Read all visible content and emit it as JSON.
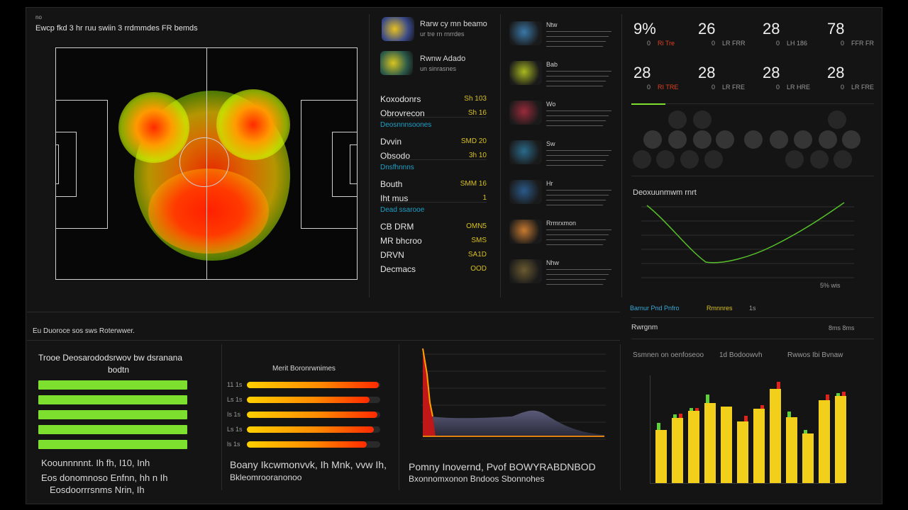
{
  "header": {
    "badge": "no",
    "title": "Ewcp fkd 3 hr ruu swiin 3 rrdmmdes FR bemds"
  },
  "players": [
    {
      "name": "Rarw cy mn beamo",
      "meta": "ur tre rn rnrrdes"
    },
    {
      "name": "Rwnw Adado",
      "meta": "un sinrasnes"
    }
  ],
  "stats_table": [
    {
      "label": "Koxodonrs",
      "value": "Sh 103"
    },
    {
      "label": "Obrovrecon",
      "value": "Sh 16"
    },
    {
      "section": "Deosnnnsoones"
    },
    {
      "label": "Dvvin",
      "value": "SMD 20"
    },
    {
      "label": "Obsodo",
      "value": "3h 10"
    },
    {
      "section": "Dnsfhnnns"
    },
    {
      "label": "Bouth",
      "value": "SMM 16"
    },
    {
      "label": "Iht mus",
      "value": "1"
    },
    {
      "section": "Dead ssarooe"
    },
    {
      "label": "CB DRM",
      "value": "OMN5"
    },
    {
      "label": "MR bhcroo",
      "value": "SMS"
    },
    {
      "label": "DRVN",
      "value": "SA1D"
    },
    {
      "label": "Decmacs",
      "value": "OOD"
    }
  ],
  "gallery": [
    "Ntw",
    "Bab",
    "Wo",
    "Sw",
    "Hr",
    "Rrmrxmon",
    "Nhw"
  ],
  "kpis": [
    {
      "value": "9%",
      "num": "0",
      "sub": "Ri Tre"
    },
    {
      "value": "26",
      "num": "0",
      "sub": "LR FRR"
    },
    {
      "value": "28",
      "num": "0",
      "sub": "LH 186"
    },
    {
      "value": "78",
      "num": "0",
      "sub": "FFR FR"
    },
    {
      "value": "28",
      "num": "0",
      "sub": "RI TRE"
    },
    {
      "value": "28",
      "num": "0",
      "sub": "LR FRE"
    },
    {
      "value": "28",
      "num": "0",
      "sub": "LR HRE"
    },
    {
      "value": "28",
      "num": "0",
      "sub": "LR FRE"
    }
  ],
  "line_chart": {
    "title": "Deoxuunmwm rnrt",
    "footer": "5% wis"
  },
  "mid_right": {
    "tag_a": "Barnur Pnd Pnfro",
    "tag_b": "Rmnnres",
    "tag_c": "1s",
    "label": "Rwrgnm",
    "right": "8ms 8ms"
  },
  "bottom": {
    "section_title": "Eu Duoroce sos sws Roterwwer.",
    "left_title": "Trooe Deosarododsrwov bw dsranana",
    "left_sub": "bodtn",
    "left_foot1": "Koounnnnnt. Ih fh, I10, Inh",
    "left_foot2": "Eos donomnoso Enfnn, hh n Ih",
    "left_foot3": "Eosdoorrrsnms Nrin, Ih",
    "mid_title": "Merit Boronrwnimes",
    "bar_labels": [
      "11 1s",
      "Ls 1s",
      "Is 1s",
      "Ls 1s",
      "ls 1s"
    ],
    "mid_foot1": "Boany Ikcwmonvvk, Ih Mnk, vvw Ih,",
    "mid_foot2": "Bkleomrooranonoo",
    "area_foot1": "Pomny Inovernd, Pvof BOWYRABDNBOD",
    "area_foot2": "Bxonnomxonon Bndoos Sbonnohes",
    "bar_head1": "Ssmnen on oenfoseoo",
    "bar_head2": "1d Bodoowvh",
    "bar_head3": "Rwwos Ibi Bvnaw"
  },
  "bar_chart": {
    "type": "bar",
    "values": [
      45,
      55,
      61,
      68,
      65,
      52,
      63,
      80,
      56,
      42,
      70,
      74
    ],
    "tips_red": [
      0,
      6,
      4,
      0,
      0,
      8,
      5,
      10,
      0,
      0,
      8,
      6
    ],
    "tips_green": [
      10,
      5,
      4,
      12,
      0,
      0,
      0,
      0,
      8,
      5,
      0,
      4
    ]
  },
  "hbars": [
    0.99,
    0.92,
    0.98,
    0.95,
    0.9
  ],
  "green_bars": [
    1,
    1,
    1,
    1,
    1
  ]
}
